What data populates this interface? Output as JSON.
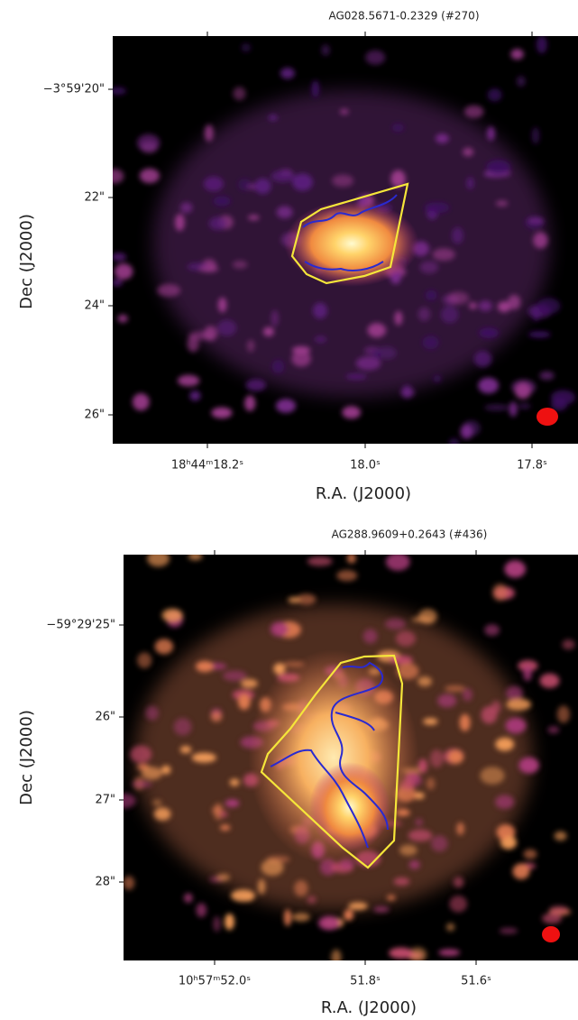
{
  "panels": [
    {
      "title": "AG028.5671-0.2329 (#270)",
      "x_label": "R.A. (J2000)",
      "y_label": "Dec (J2000)",
      "x_tick_labels": [
        "18ʰ44ᵐ18.2ˢ",
        "18.0ˢ",
        "17.8ˢ"
      ],
      "y_tick_labels": [
        "−3°59'20\"",
        "22\"",
        "24\"",
        "26\""
      ]
    },
    {
      "title": "AG288.9609+0.2643 (#436)",
      "x_label": "R.A. (J2000)",
      "y_label": "Dec (J2000)",
      "x_tick_labels": [
        "10ʰ57ᵐ52.0ˢ",
        "51.8ˢ",
        "51.6ˢ"
      ],
      "y_tick_labels": [
        "−59°29'25\"",
        "26\"",
        "27\"",
        "28\""
      ]
    }
  ]
}
